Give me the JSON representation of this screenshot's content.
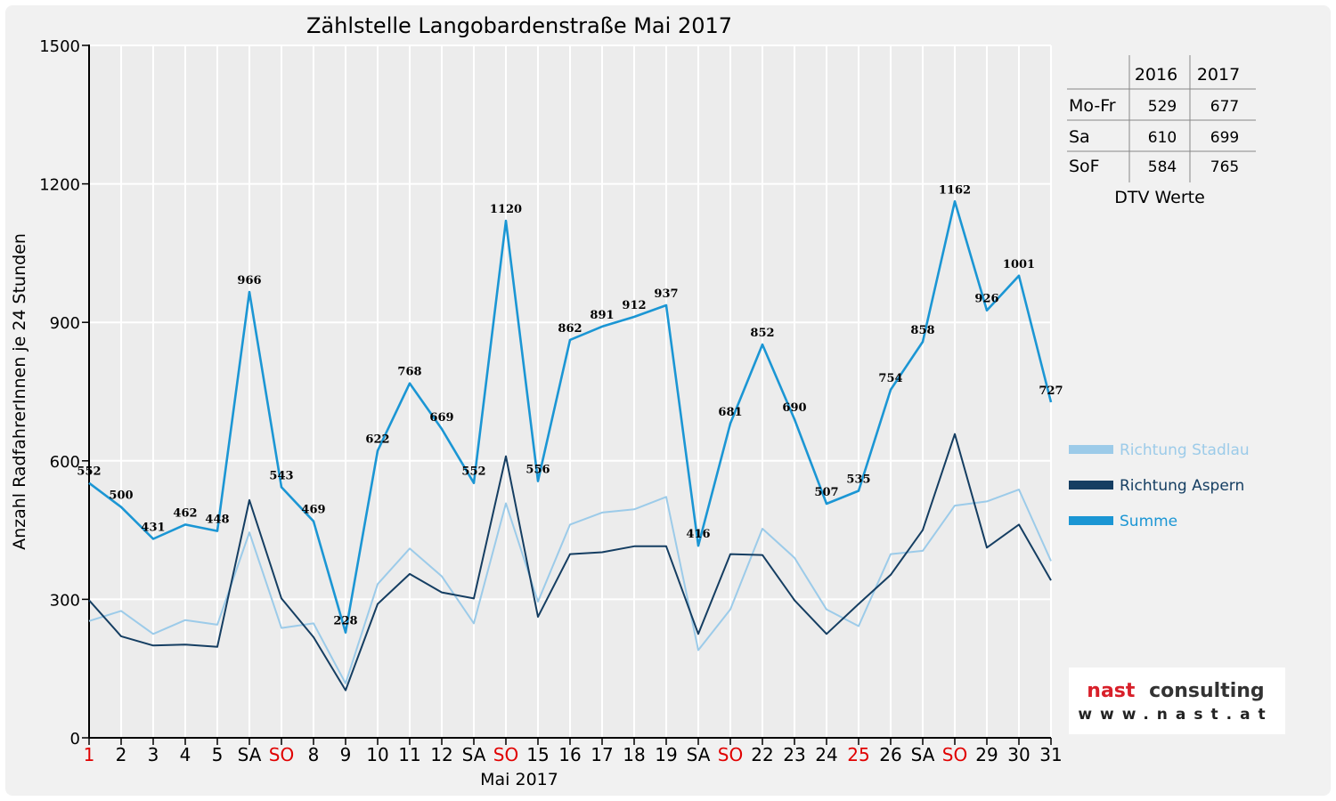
{
  "chart_data": {
    "type": "line",
    "title": "Zählstelle Langobardenstraße Mai 2017",
    "xlabel": "Mai 2017",
    "ylabel": "Anzahl RadfahrerInnen je 24 Stunden",
    "ylim": [
      0,
      1500
    ],
    "yticks": [
      0,
      300,
      600,
      900,
      1200,
      1500
    ],
    "categories": [
      "1",
      "2",
      "3",
      "4",
      "5",
      "SA",
      "SO",
      "8",
      "9",
      "10",
      "11",
      "12",
      "SA",
      "SO",
      "15",
      "16",
      "17",
      "18",
      "19",
      "SA",
      "SO",
      "22",
      "23",
      "24",
      "25",
      "26",
      "SA",
      "SO",
      "29",
      "30",
      "31"
    ],
    "highlight_categories": [
      0,
      6,
      13,
      20,
      24,
      27
    ],
    "grid": true,
    "legend_position": "right",
    "series": [
      {
        "name": "Richtung Stadlau",
        "color": "#9ccbe9",
        "values": [
          253,
          275,
          225,
          255,
          245,
          445,
          238,
          248,
          118,
          333,
          410,
          350,
          248,
          508,
          295,
          462,
          488,
          495,
          522,
          190,
          278,
          453,
          390,
          278,
          242,
          398,
          405,
          503,
          512,
          538,
          383
        ]
      },
      {
        "name": "Richtung Aspern",
        "color": "#153e62",
        "values": [
          298,
          220,
          200,
          202,
          197,
          515,
          302,
          218,
          103,
          290,
          355,
          315,
          302,
          610,
          262,
          398,
          402,
          415,
          415,
          225,
          398,
          396,
          298,
          225,
          290,
          353,
          450,
          658,
          412,
          462,
          341
        ]
      },
      {
        "name": "Summe",
        "color": "#1b96d4",
        "values": [
          552,
          500,
          431,
          462,
          448,
          966,
          543,
          469,
          228,
          622,
          768,
          669,
          552,
          1120,
          556,
          862,
          891,
          912,
          937,
          416,
          681,
          852,
          690,
          507,
          535,
          754,
          858,
          1162,
          926,
          1001,
          727
        ]
      }
    ],
    "data_labels": [
      552,
      500,
      431,
      462,
      448,
      966,
      543,
      469,
      228,
      622,
      768,
      669,
      552,
      1120,
      556,
      862,
      891,
      912,
      937,
      416,
      681,
      852,
      690,
      507,
      535,
      754,
      858,
      1162,
      926,
      1001,
      727
    ]
  },
  "table": {
    "headers": [
      "",
      "2016",
      "2017"
    ],
    "rows": [
      {
        "label": "Mo-Fr",
        "v2016": "529",
        "v2017": "677"
      },
      {
        "label": "Sa",
        "v2016": "610",
        "v2017": "699"
      },
      {
        "label": "SoF",
        "v2016": "584",
        "v2017": "765"
      }
    ],
    "caption": "DTV Werte"
  },
  "logo": {
    "word1": "nast",
    "word2": "consulting",
    "url": "www.nast.at",
    "color1": "#d8202a",
    "color2": "#333333"
  },
  "colors": {
    "highlight_tick": "#e00000",
    "axis": "#000000",
    "grid": "#ffffff"
  }
}
